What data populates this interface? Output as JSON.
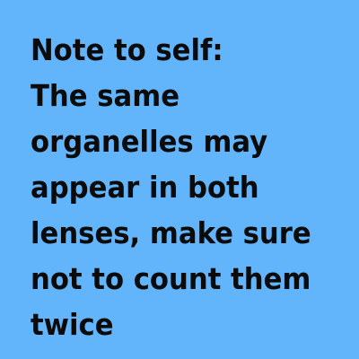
{
  "note": {
    "lines": [
      "Note to self:",
      "The same",
      "organelles may",
      "appear in both",
      "lenses, make sure",
      "not to count them",
      "twice"
    ],
    "text_color": "#0b0b0b",
    "background_color": "#62b5fb"
  }
}
